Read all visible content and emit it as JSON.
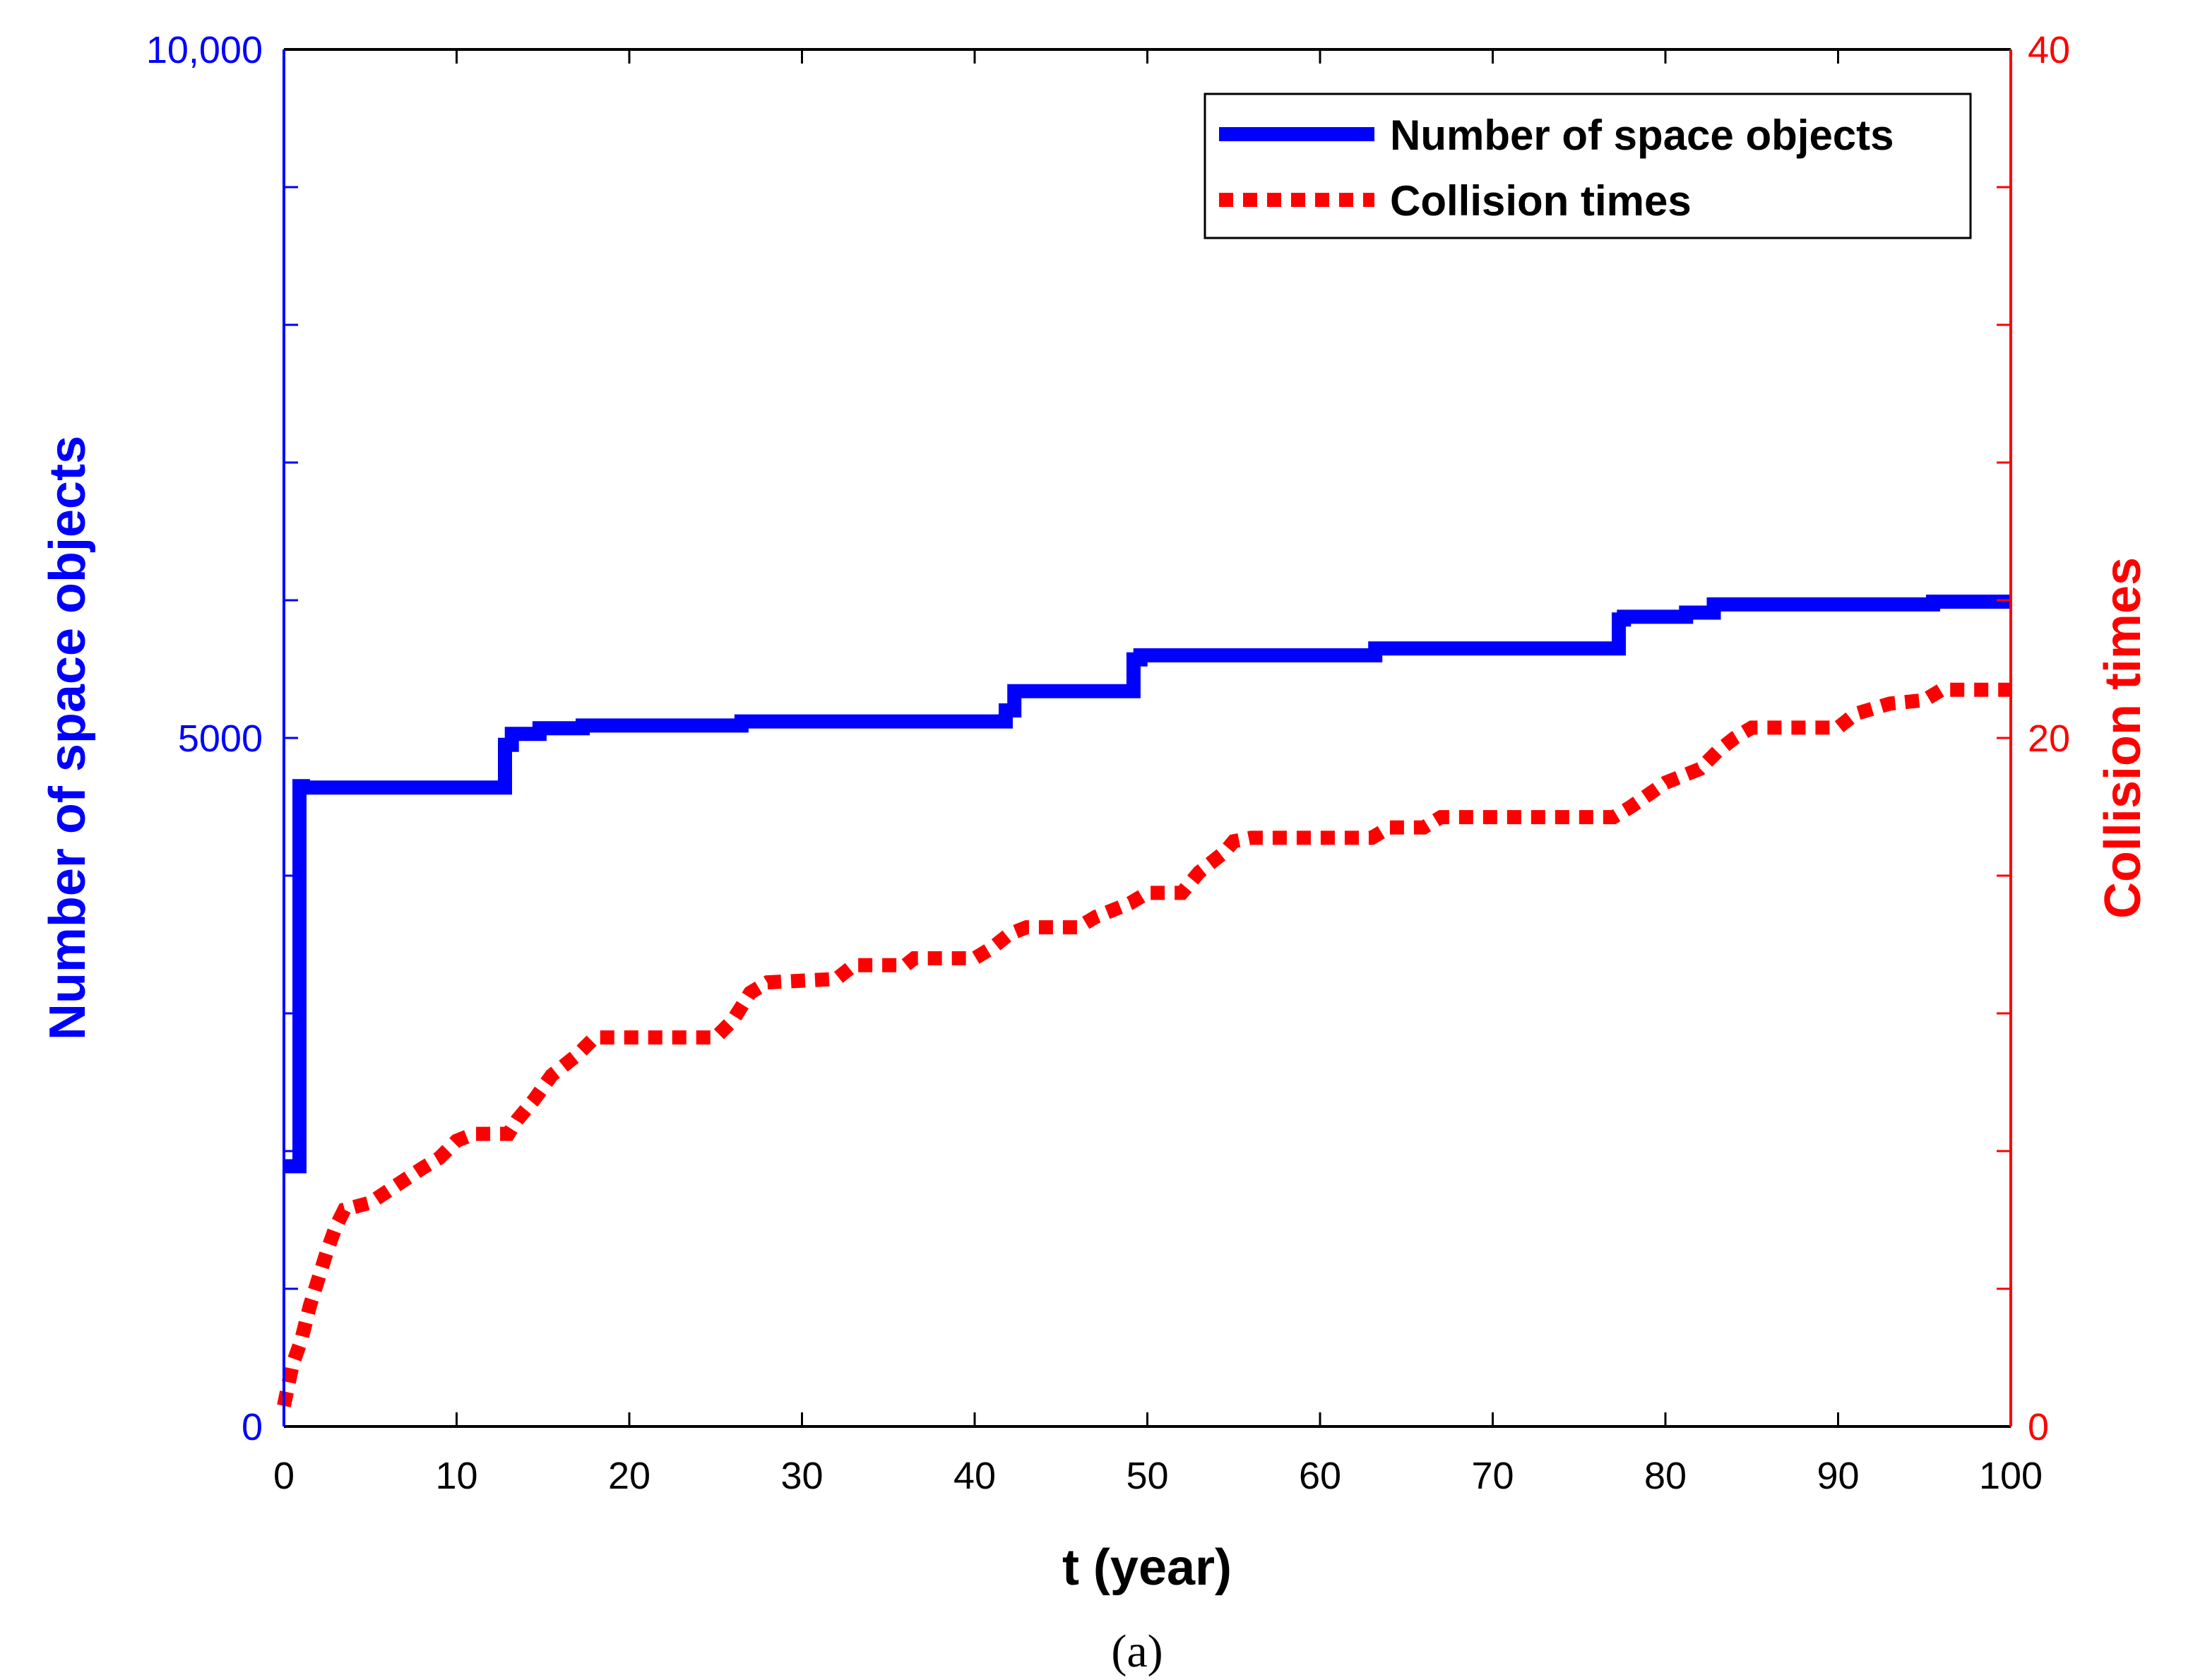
{
  "colors": {
    "left_axis": "#0000ff",
    "right_axis": "#ff0000",
    "frame": "#000000",
    "background": "#ffffff"
  },
  "caption": "(a)",
  "chart_data": {
    "type": "line",
    "title": "",
    "xlabel": "t (year)",
    "ylabel_left": "Number of space objects",
    "ylabel_right": "Collision times",
    "xlim": [
      0,
      100
    ],
    "ylim_left": [
      0,
      10000
    ],
    "ylim_right": [
      0,
      40
    ],
    "x_ticks": [
      0,
      10,
      20,
      30,
      40,
      50,
      60,
      70,
      80,
      90,
      100
    ],
    "x_tick_labels": [
      "0",
      "10",
      "20",
      "30",
      "40",
      "50",
      "60",
      "70",
      "80",
      "90",
      "100"
    ],
    "y_left_ticks": [
      0,
      5000,
      10000
    ],
    "y_left_tick_labels": [
      "0",
      "5000",
      "10,000"
    ],
    "y_left_minor_ticks": [
      1000,
      2000,
      3000,
      4000,
      6000,
      7000,
      8000,
      9000
    ],
    "y_right_ticks": [
      0,
      20,
      40
    ],
    "y_right_tick_labels": [
      "0",
      "20",
      "40"
    ],
    "y_right_minor_ticks": [
      4,
      8,
      12,
      16,
      24,
      28,
      32,
      36
    ],
    "legend_position": "top-right",
    "series": [
      {
        "name": "Number of space objects",
        "axis": "left",
        "color": "#0000ff",
        "style": "solid",
        "x": [
          0,
          0.9,
          0.9,
          1.1,
          1.1,
          12.8,
          12.8,
          13.2,
          13.2,
          14.8,
          14.8,
          17.3,
          17.3,
          26.5,
          26.5,
          41.8,
          41.8,
          42.3,
          42.3,
          49.2,
          49.2,
          49.6,
          49.6,
          63.2,
          63.2,
          77.3,
          77.3,
          77.6,
          77.6,
          81.2,
          81.2,
          82.8,
          82.8,
          95.5,
          95.5,
          100
        ],
        "y": [
          1890,
          1890,
          4650,
          4650,
          4640,
          4640,
          4950,
          4950,
          5030,
          5030,
          5070,
          5070,
          5090,
          5090,
          5120,
          5120,
          5200,
          5200,
          5340,
          5340,
          5570,
          5570,
          5600,
          5600,
          5650,
          5650,
          5860,
          5860,
          5880,
          5880,
          5910,
          5910,
          5970,
          5970,
          5990,
          5990
        ]
      },
      {
        "name": "Collision times",
        "axis": "right",
        "color": "#ff0000",
        "style": "dotted",
        "x": [
          0,
          0.5,
          1,
          1.5,
          2,
          2.5,
          3,
          3.5,
          5,
          6.5,
          8,
          9,
          10,
          11,
          13,
          13.5,
          14.5,
          15.5,
          17,
          18,
          25,
          26,
          27,
          28,
          32,
          33,
          36,
          36.5,
          40,
          41,
          42,
          43,
          46,
          47,
          49,
          50,
          52,
          53,
          54.5,
          55,
          56,
          63,
          64,
          66,
          67,
          77,
          78,
          80,
          82,
          83,
          84,
          85,
          90,
          91,
          93,
          95,
          96,
          100
        ],
        "y": [
          0.6,
          1.8,
          2.5,
          3.5,
          4.3,
          5.1,
          5.8,
          6.3,
          6.5,
          7.0,
          7.5,
          7.8,
          8.3,
          8.5,
          8.5,
          8.9,
          9.5,
          10.2,
          10.8,
          11.3,
          11.3,
          11.8,
          12.6,
          12.9,
          13.0,
          13.4,
          13.4,
          13.6,
          13.6,
          13.9,
          14.3,
          14.5,
          14.5,
          14.8,
          15.2,
          15.5,
          15.5,
          16.1,
          16.7,
          17.0,
          17.1,
          17.1,
          17.4,
          17.4,
          17.7,
          17.7,
          18.0,
          18.7,
          19.1,
          19.6,
          20.0,
          20.3,
          20.3,
          20.7,
          21.0,
          21.1,
          21.4,
          21.4
        ]
      }
    ]
  }
}
